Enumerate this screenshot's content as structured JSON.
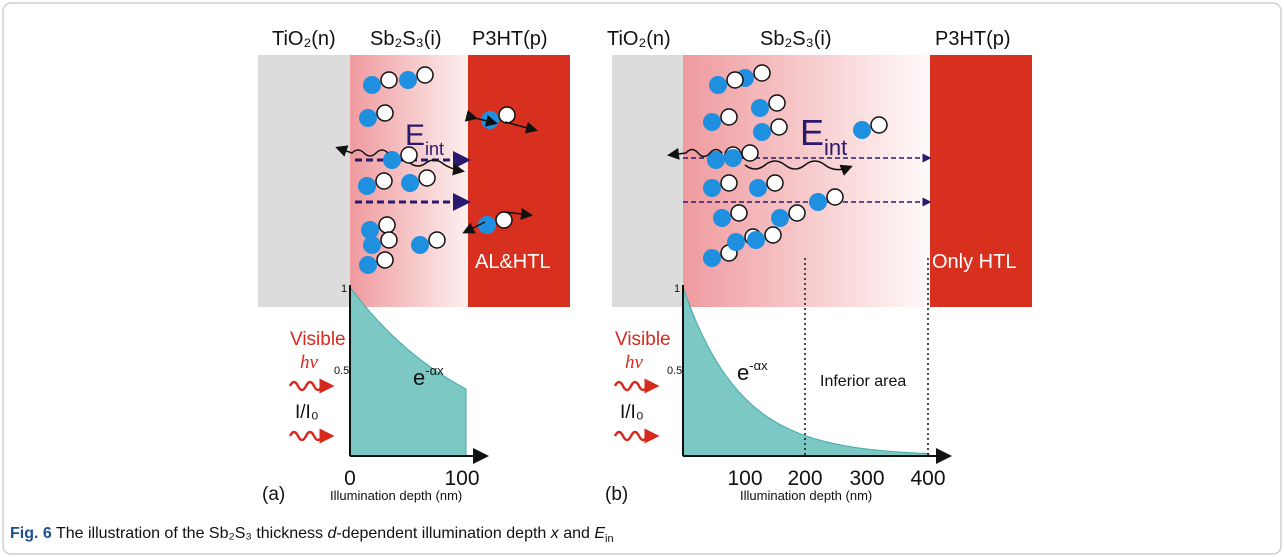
{
  "panel_a": {
    "layers": [
      "TiO₂(n)",
      "Sb₂S₃(i)",
      "P3HT(p)"
    ],
    "field": {
      "symbol": "E",
      "sub": "int"
    },
    "contact": "AL&HTL",
    "light": {
      "label": "Visible",
      "symbol": "hν"
    },
    "ylabel": "I/I₀",
    "yticks": [
      "1",
      "0.5"
    ],
    "curve": {
      "base": "e",
      "exp": "-αx"
    },
    "xticks": [
      "0",
      "100"
    ],
    "xlabel": "Illumination depth (nm)",
    "tag": "(a)"
  },
  "panel_b": {
    "layers": [
      "TiO₂(n)",
      "Sb₂S₃(i)",
      "P3HT(p)"
    ],
    "field": {
      "symbol": "E",
      "sub": "int"
    },
    "contact": "Only HTL",
    "light": {
      "label": "Visible",
      "symbol": "hν"
    },
    "ylabel": "I/I₀",
    "yticks": [
      "1",
      "0.5"
    ],
    "curve": {
      "base": "e",
      "exp": "-αx"
    },
    "region": "Inferior area",
    "xticks": [
      "100",
      "200",
      "300",
      "400"
    ],
    "xlabel": "Illumination depth (nm)",
    "tag": "(b)"
  },
  "caption": {
    "label": "Fig. 6",
    "parts": [
      " The illustration of the Sb₂S₃ thickness ",
      "d",
      "-dependent illumination depth ",
      "x",
      " and ",
      "E",
      "in"
    ]
  }
}
